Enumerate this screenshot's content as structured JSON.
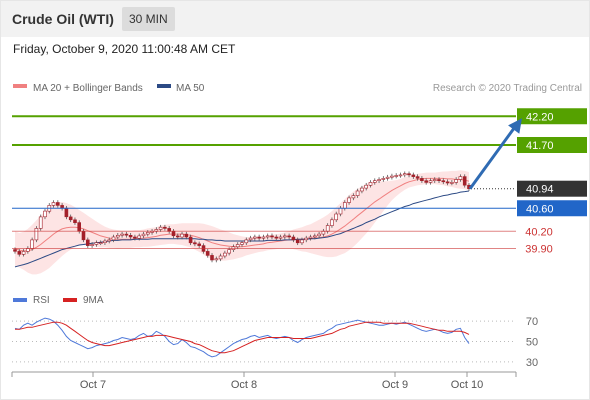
{
  "header": {
    "title": "Crude Oil (WTI)",
    "timeframe": "30 MIN"
  },
  "timestamp": "Friday, October 9, 2020 11:00:48 AM CET",
  "legend": {
    "ma20": "MA 20 + Bollinger Bands",
    "ma50": "MA 50",
    "credit": "Research © 2020 Trading Central"
  },
  "rsi_legend": {
    "rsi": "RSI",
    "ma9": "9MA"
  },
  "colors": {
    "resistance": "#55a100",
    "support": "#2166c8",
    "support_minor": "#cc3333",
    "price_tag": "#333333",
    "candle": "#a3202a",
    "ma20": "#f08080",
    "ma50": "#2c4a85",
    "bands": "#fde4e4",
    "rsi": "#4f79d9",
    "rsi_ma": "#d62222",
    "arrow": "#2f6bb3"
  },
  "chart_data": [
    {
      "type": "candlestick",
      "ylim": [
        39.3,
        42.5
      ],
      "x_ticks": [
        "Oct 7",
        "Oct 8",
        "Oct 9",
        "Oct 10"
      ],
      "last_price": 40.94,
      "levels": [
        {
          "value": 42.2,
          "label": "42.20",
          "kind": "resistance"
        },
        {
          "value": 41.7,
          "label": "41.70",
          "kind": "resistance"
        },
        {
          "value": 40.6,
          "label": "40.60",
          "kind": "support"
        },
        {
          "value": 40.2,
          "label": "40.20",
          "kind": "support_minor"
        },
        {
          "value": 39.9,
          "label": "39.90",
          "kind": "support_minor"
        }
      ],
      "forecast_target": 42.2,
      "series": [
        {
          "name": "MA 20 + Bollinger Bands"
        },
        {
          "name": "MA 50"
        }
      ],
      "close": [
        39.85,
        39.8,
        39.85,
        39.9,
        40.05,
        40.25,
        40.45,
        40.55,
        40.65,
        40.7,
        40.65,
        40.6,
        40.45,
        40.4,
        40.35,
        40.2,
        40.05,
        39.95,
        39.97,
        40.0,
        40.0,
        40.03,
        40.05,
        40.1,
        40.13,
        40.15,
        40.13,
        40.1,
        40.08,
        40.12,
        40.15,
        40.18,
        40.2,
        40.23,
        40.27,
        40.25,
        40.2,
        40.12,
        40.1,
        40.15,
        40.1,
        40.0,
        39.98,
        39.95,
        39.85,
        39.78,
        39.7,
        39.72,
        39.77,
        39.82,
        39.88,
        39.93,
        39.97,
        40.0,
        40.05,
        40.08,
        40.1,
        40.08,
        40.1,
        40.12,
        40.1,
        40.08,
        40.1,
        40.12,
        40.1,
        40.05,
        40.0,
        40.05,
        40.08,
        40.1,
        40.12,
        40.15,
        40.2,
        40.3,
        40.4,
        40.5,
        40.6,
        40.7,
        40.78,
        40.82,
        40.9,
        40.95,
        41.0,
        41.05,
        41.08,
        41.1,
        41.12,
        41.14,
        41.16,
        41.17,
        41.18,
        41.2,
        41.18,
        41.15,
        41.12,
        41.08,
        41.05,
        41.08,
        41.1,
        41.08,
        41.06,
        41.04,
        41.05,
        41.1,
        41.15,
        41.0,
        40.94
      ],
      "ma20": [
        39.9,
        39.87,
        39.86,
        39.86,
        39.88,
        39.92,
        39.97,
        40.03,
        40.09,
        40.15,
        40.2,
        40.24,
        40.26,
        40.27,
        40.27,
        40.26,
        40.24,
        40.21,
        40.18,
        40.15,
        40.12,
        40.1,
        40.08,
        40.07,
        40.06,
        40.06,
        40.06,
        40.06,
        40.07,
        40.07,
        40.08,
        40.09,
        40.1,
        40.11,
        40.13,
        40.14,
        40.15,
        40.15,
        40.15,
        40.15,
        40.14,
        40.13,
        40.11,
        40.09,
        40.06,
        40.03,
        40.0,
        39.98,
        39.96,
        39.95,
        39.94,
        39.93,
        39.93,
        39.93,
        39.94,
        39.95,
        39.96,
        39.97,
        39.98,
        40.0,
        40.01,
        40.02,
        40.03,
        40.04,
        40.05,
        40.06,
        40.06,
        40.06,
        40.07,
        40.07,
        40.08,
        40.09,
        40.1,
        40.12,
        40.15,
        40.19,
        40.24,
        40.29,
        40.35,
        40.41,
        40.47,
        40.53,
        40.59,
        40.65,
        40.71,
        40.76,
        40.81,
        40.86,
        40.91,
        40.95,
        40.99,
        41.03,
        41.06,
        41.08,
        41.1,
        41.11,
        41.12,
        41.12,
        41.12,
        41.12,
        41.12,
        41.11,
        41.11,
        41.1,
        41.1,
        41.09,
        41.07
      ],
      "ma50": [
        39.58,
        39.6,
        39.62,
        39.64,
        39.67,
        39.7,
        39.73,
        39.76,
        39.79,
        39.82,
        39.85,
        39.88,
        39.9,
        39.92,
        39.94,
        39.96,
        39.97,
        39.98,
        39.99,
        40.0,
        40.01,
        40.02,
        40.03,
        40.04,
        40.04,
        40.05,
        40.05,
        40.05,
        40.06,
        40.06,
        40.06,
        40.06,
        40.07,
        40.07,
        40.07,
        40.07,
        40.07,
        40.07,
        40.07,
        40.07,
        40.07,
        40.07,
        40.07,
        40.06,
        40.06,
        40.05,
        40.05,
        40.04,
        40.04,
        40.03,
        40.03,
        40.03,
        40.03,
        40.03,
        40.03,
        40.03,
        40.03,
        40.03,
        40.03,
        40.04,
        40.04,
        40.04,
        40.04,
        40.05,
        40.05,
        40.05,
        40.06,
        40.06,
        40.06,
        40.07,
        40.07,
        40.08,
        40.09,
        40.1,
        40.12,
        40.14,
        40.16,
        40.19,
        40.22,
        40.25,
        40.28,
        40.31,
        40.35,
        40.38,
        40.41,
        40.45,
        40.48,
        40.51,
        40.54,
        40.57,
        40.6,
        40.63,
        40.65,
        40.68,
        40.7,
        40.72,
        40.74,
        40.76,
        40.78,
        40.8,
        40.82,
        40.83,
        40.85,
        40.86,
        40.88,
        40.89,
        40.9
      ],
      "bb_width": [
        0.3,
        0.3,
        0.33,
        0.38,
        0.43,
        0.47,
        0.5,
        0.52,
        0.53,
        0.52,
        0.5,
        0.47,
        0.43,
        0.39,
        0.35,
        0.31,
        0.28,
        0.26,
        0.24,
        0.22,
        0.2,
        0.18,
        0.17,
        0.16,
        0.16,
        0.15,
        0.15,
        0.15,
        0.15,
        0.15,
        0.15,
        0.16,
        0.16,
        0.16,
        0.17,
        0.17,
        0.17,
        0.17,
        0.18,
        0.19,
        0.2,
        0.21,
        0.23,
        0.25,
        0.27,
        0.28,
        0.29,
        0.28,
        0.27,
        0.26,
        0.24,
        0.22,
        0.2,
        0.18,
        0.16,
        0.15,
        0.14,
        0.13,
        0.13,
        0.13,
        0.13,
        0.13,
        0.13,
        0.14,
        0.15,
        0.17,
        0.19,
        0.21,
        0.23,
        0.25,
        0.28,
        0.31,
        0.34,
        0.37,
        0.4,
        0.43,
        0.45,
        0.47,
        0.48,
        0.48,
        0.47,
        0.45,
        0.43,
        0.4,
        0.36,
        0.31,
        0.26,
        0.21,
        0.17,
        0.14,
        0.12,
        0.11,
        0.1,
        0.1,
        0.1,
        0.1,
        0.1,
        0.1,
        0.1,
        0.11,
        0.12,
        0.13,
        0.14,
        0.15,
        0.16,
        0.16,
        0.16
      ]
    },
    {
      "type": "line",
      "yticks": [
        70,
        50,
        30
      ],
      "ylim": [
        25,
        78
      ],
      "series": [
        {
          "name": "RSI",
          "values": [
            63,
            62,
            66,
            68,
            66,
            69,
            71,
            73,
            72,
            70,
            66,
            61,
            55,
            51,
            49,
            47,
            45,
            43,
            44,
            46,
            47,
            48,
            49,
            51,
            52,
            54,
            53,
            52,
            53,
            56,
            58,
            55,
            56,
            60,
            58,
            55,
            50,
            47,
            48,
            52,
            49,
            45,
            44,
            42,
            40,
            37,
            35,
            36,
            39,
            42,
            45,
            48,
            50,
            52,
            53,
            55,
            56,
            54,
            55,
            56,
            54,
            53,
            54,
            55,
            54,
            51,
            49,
            52,
            54,
            55,
            56,
            57,
            58,
            61,
            63,
            66,
            67,
            68,
            69,
            70,
            71,
            70,
            69,
            68,
            67,
            66,
            66,
            67,
            68,
            67,
            68,
            69,
            67,
            65,
            63,
            61,
            60,
            61,
            62,
            61,
            59,
            58,
            59,
            62,
            63,
            54,
            48
          ]
        },
        {
          "name": "9MA",
          "values": [
            62,
            62,
            63,
            64,
            64,
            65,
            66,
            67,
            68,
            69,
            69,
            68,
            66,
            63,
            60,
            57,
            54,
            51,
            49,
            48,
            47,
            46,
            46,
            47,
            48,
            49,
            50,
            51,
            52,
            53,
            54,
            55,
            55,
            56,
            56,
            56,
            55,
            54,
            53,
            52,
            51,
            50,
            48,
            47,
            45,
            43,
            41,
            40,
            39,
            39,
            40,
            41,
            43,
            45,
            47,
            49,
            51,
            52,
            53,
            54,
            54,
            54,
            54,
            54,
            54,
            53,
            53,
            53,
            53,
            53,
            54,
            55,
            56,
            57,
            58,
            60,
            62,
            63,
            65,
            66,
            67,
            68,
            69,
            69,
            69,
            69,
            68,
            68,
            68,
            68,
            68,
            68,
            68,
            67,
            66,
            65,
            64,
            63,
            62,
            61,
            61,
            60,
            60,
            60,
            60,
            59,
            57
          ]
        }
      ]
    }
  ]
}
